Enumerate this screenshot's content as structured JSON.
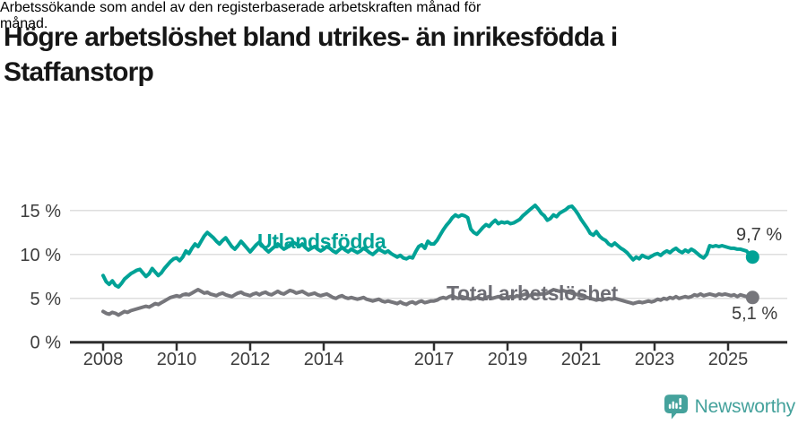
{
  "header": {
    "title_lines": [
      "Högre arbetslöshet bland utrikes- än inrikesfödda i",
      "Staffanstorp"
    ],
    "subtitle_lines": [
      "Arbetssökande som andel av den registerbaserade arbetskraften månad för",
      "månad."
    ]
  },
  "chart_data": {
    "type": "line",
    "title": "Högre arbetslöshet bland utrikes- än inrikesfödda i Staffanstorp",
    "subtitle": "Arbetssökande som andel av den registerbaserade arbetskraften månad för månad.",
    "unit": "%",
    "frequency": "monthly",
    "x_start": "2008-01",
    "x_end": "2025-09",
    "x_ticks": [
      2008,
      2010,
      2012,
      2014,
      2017,
      2019,
      2021,
      2023,
      2025
    ],
    "x_tick_labels": [
      "2008",
      "2010",
      "2012",
      "2014",
      "2017",
      "2019",
      "2021",
      "2023",
      "2025"
    ],
    "y_ticks": [
      0,
      5,
      10,
      15
    ],
    "y_tick_labels": [
      "0 %",
      "5 %",
      "10 %",
      "15 %"
    ],
    "ylim": [
      0,
      16.8
    ],
    "grid": "horizontal-only",
    "legend_position": "inline-labels",
    "series": [
      {
        "name": "Utlandsfödda",
        "color": "#00a296",
        "label_color": "#00a296",
        "end_label": "9,7 %",
        "end_value": 9.7,
        "values": [
          7.6,
          6.9,
          6.6,
          7.0,
          6.5,
          6.3,
          6.7,
          7.2,
          7.5,
          7.8,
          8.0,
          8.2,
          8.3,
          7.9,
          7.5,
          7.8,
          8.4,
          8.0,
          7.6,
          7.9,
          8.4,
          8.8,
          9.2,
          9.5,
          9.6,
          9.3,
          9.7,
          10.4,
          10.1,
          10.7,
          11.2,
          10.9,
          11.5,
          12.1,
          12.5,
          12.2,
          11.9,
          11.5,
          11.2,
          11.6,
          11.9,
          11.4,
          10.9,
          10.6,
          11.0,
          11.5,
          11.1,
          10.7,
          10.3,
          10.7,
          11.1,
          11.4,
          11.0,
          10.6,
          10.3,
          10.6,
          10.9,
          11.2,
          10.9,
          10.6,
          10.8,
          11.1,
          11.4,
          11.2,
          10.9,
          11.2,
          10.8,
          10.5,
          10.7,
          10.9,
          10.6,
          10.4,
          10.6,
          10.9,
          10.7,
          10.4,
          10.2,
          10.5,
          10.8,
          10.5,
          10.3,
          10.6,
          10.4,
          10.2,
          10.4,
          10.7,
          10.5,
          10.2,
          10.0,
          10.3,
          10.6,
          10.4,
          10.2,
          10.4,
          10.1,
          9.9,
          9.7,
          9.9,
          9.6,
          9.5,
          9.7,
          9.6,
          10.3,
          10.9,
          11.1,
          10.7,
          11.5,
          11.2,
          11.2,
          11.6,
          12.2,
          12.8,
          13.3,
          13.7,
          14.2,
          14.5,
          14.3,
          14.5,
          14.4,
          14.2,
          12.9,
          12.5,
          12.3,
          12.7,
          13.1,
          13.4,
          13.2,
          13.6,
          13.9,
          13.5,
          13.7,
          13.6,
          13.7,
          13.5,
          13.6,
          13.8,
          14.0,
          14.4,
          14.7,
          15.0,
          15.3,
          15.6,
          15.2,
          14.7,
          14.4,
          13.9,
          14.1,
          14.5,
          14.3,
          14.7,
          14.9,
          15.1,
          15.4,
          15.5,
          15.1,
          14.6,
          14.0,
          13.5,
          13.0,
          12.4,
          12.2,
          12.6,
          12.1,
          11.8,
          11.6,
          11.2,
          11.0,
          11.3,
          11.0,
          10.7,
          10.5,
          10.2,
          9.8,
          9.4,
          9.7,
          9.5,
          9.9,
          9.7,
          9.6,
          9.8,
          10.0,
          10.1,
          9.9,
          10.2,
          10.4,
          10.2,
          10.5,
          10.7,
          10.4,
          10.2,
          10.5,
          10.3,
          10.6,
          10.4,
          10.1,
          9.8,
          9.6,
          10.0,
          11.0,
          10.9,
          11.0,
          10.9,
          11.0,
          10.9,
          10.8,
          10.7,
          10.7,
          10.6,
          10.6,
          10.5,
          10.4,
          10.0,
          9.7
        ]
      },
      {
        "name": "Total arbetslöshet",
        "color": "#76767b",
        "label_color": "#6d6d74",
        "end_label": "5,1 %",
        "end_value": 5.1,
        "values": [
          3.5,
          3.3,
          3.2,
          3.4,
          3.3,
          3.1,
          3.3,
          3.5,
          3.4,
          3.6,
          3.7,
          3.8,
          3.9,
          4.0,
          4.1,
          4.0,
          4.2,
          4.4,
          4.3,
          4.5,
          4.7,
          4.9,
          5.1,
          5.2,
          5.3,
          5.2,
          5.4,
          5.5,
          5.4,
          5.6,
          5.8,
          6.0,
          5.8,
          5.6,
          5.7,
          5.5,
          5.4,
          5.3,
          5.5,
          5.6,
          5.4,
          5.3,
          5.2,
          5.4,
          5.6,
          5.7,
          5.5,
          5.4,
          5.3,
          5.5,
          5.6,
          5.4,
          5.6,
          5.7,
          5.5,
          5.4,
          5.6,
          5.8,
          5.6,
          5.5,
          5.7,
          5.9,
          5.8,
          5.6,
          5.7,
          5.8,
          5.6,
          5.4,
          5.5,
          5.6,
          5.4,
          5.3,
          5.4,
          5.5,
          5.3,
          5.1,
          5.0,
          5.2,
          5.3,
          5.1,
          5.0,
          5.1,
          5.0,
          4.9,
          5.0,
          5.1,
          4.9,
          4.8,
          4.7,
          4.8,
          4.9,
          4.7,
          4.6,
          4.7,
          4.6,
          4.5,
          4.4,
          4.6,
          4.4,
          4.3,
          4.5,
          4.6,
          4.4,
          4.6,
          4.7,
          4.5,
          4.6,
          4.7,
          4.7,
          4.8,
          5.0,
          5.1,
          5.0,
          5.2,
          5.3,
          5.1,
          5.0,
          5.2,
          5.1,
          5.0,
          4.9,
          5.0,
          5.1,
          5.0,
          4.9,
          5.1,
          5.2,
          5.0,
          5.1,
          5.2,
          5.1,
          5.0,
          5.1,
          5.2,
          5.1,
          5.3,
          5.2,
          5.4,
          5.5,
          5.3,
          5.4,
          5.5,
          5.4,
          5.5,
          5.5,
          5.6,
          5.8,
          6.0,
          5.9,
          5.8,
          5.9,
          5.8,
          5.7,
          5.6,
          5.5,
          5.4,
          5.3,
          5.2,
          5.1,
          5.0,
          4.9,
          4.8,
          4.9,
          4.8,
          4.9,
          5.0,
          4.9,
          5.0,
          4.9,
          4.8,
          4.7,
          4.6,
          4.5,
          4.4,
          4.5,
          4.6,
          4.5,
          4.6,
          4.7,
          4.6,
          4.7,
          4.9,
          4.8,
          5.0,
          4.9,
          5.1,
          5.0,
          5.2,
          5.0,
          5.1,
          5.2,
          5.1,
          5.2,
          5.4,
          5.3,
          5.5,
          5.3,
          5.4,
          5.5,
          5.4,
          5.3,
          5.5,
          5.4,
          5.5,
          5.4,
          5.3,
          5.4,
          5.2,
          5.4,
          5.3,
          5.2,
          5.2,
          5.1
        ]
      }
    ]
  },
  "footer": {
    "brand": "Newsworthy",
    "logo_color": "#45a29c"
  }
}
